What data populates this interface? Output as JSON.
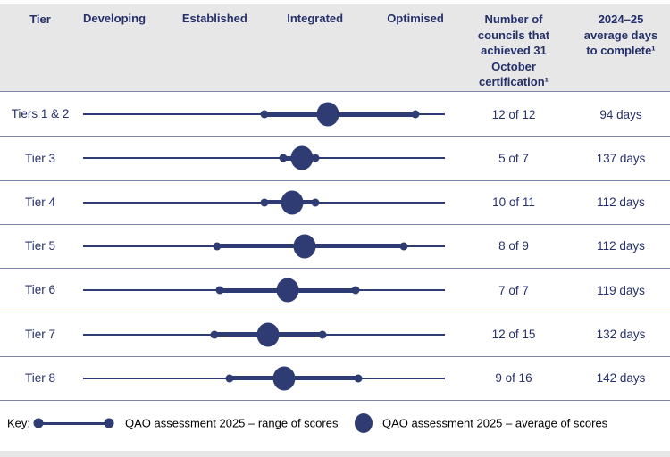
{
  "header": {
    "tier": "Tier",
    "categories": [
      "Developing",
      "Established",
      "Integrated",
      "Optimised"
    ],
    "certified": "Number of councils that achieved 31 October certification¹",
    "avg_days": "2024–25 average days to complete¹"
  },
  "key": {
    "label": "Key:",
    "range_label": "QAO assessment 2025 – range of scores",
    "average_label": "QAO assessment 2025 – average of scores"
  },
  "colors": {
    "marks": "#2f3b73",
    "text": "#25306b",
    "header_bg": "#e7e7e7",
    "separator": "#7d86ac",
    "key_text": "#000000"
  },
  "chart_data": {
    "type": "scatter",
    "subtype": "dot-range",
    "title": "",
    "x_scale": {
      "categories": [
        "Developing",
        "Established",
        "Integrated",
        "Optimised"
      ],
      "values": [
        1,
        2,
        3,
        4
      ]
    },
    "legend_position": "bottom",
    "legend": [
      "QAO assessment 2025 – range of scores",
      "QAO assessment 2025 – average of scores"
    ],
    "rows": [
      {
        "tier": "Tiers 1 & 2",
        "range_low": 2.5,
        "range_high": 4.0,
        "average": 3.13,
        "certified": "12 of 12",
        "avg_days": "94 days"
      },
      {
        "tier": "Tier 3",
        "range_low": 2.68,
        "range_high": 3.0,
        "average": 2.87,
        "certified": "5 of 7",
        "avg_days": "137 days"
      },
      {
        "tier": "Tier 4",
        "range_low": 2.5,
        "range_high": 3.0,
        "average": 2.77,
        "certified": "10 of 11",
        "avg_days": "112 days"
      },
      {
        "tier": "Tier 5",
        "range_low": 2.02,
        "range_high": 3.88,
        "average": 2.9,
        "certified": "8 of 9",
        "avg_days": "112 days"
      },
      {
        "tier": "Tier 6",
        "range_low": 2.05,
        "range_high": 3.4,
        "average": 2.73,
        "certified": "7 of 7",
        "avg_days": "119 days"
      },
      {
        "tier": "Tier 7",
        "range_low": 2.0,
        "range_high": 3.07,
        "average": 2.53,
        "certified": "12 of 15",
        "avg_days": "132 days"
      },
      {
        "tier": "Tier 8",
        "range_low": 2.15,
        "range_high": 3.43,
        "average": 2.69,
        "certified": "9 of 16",
        "avg_days": "142 days"
      }
    ]
  }
}
